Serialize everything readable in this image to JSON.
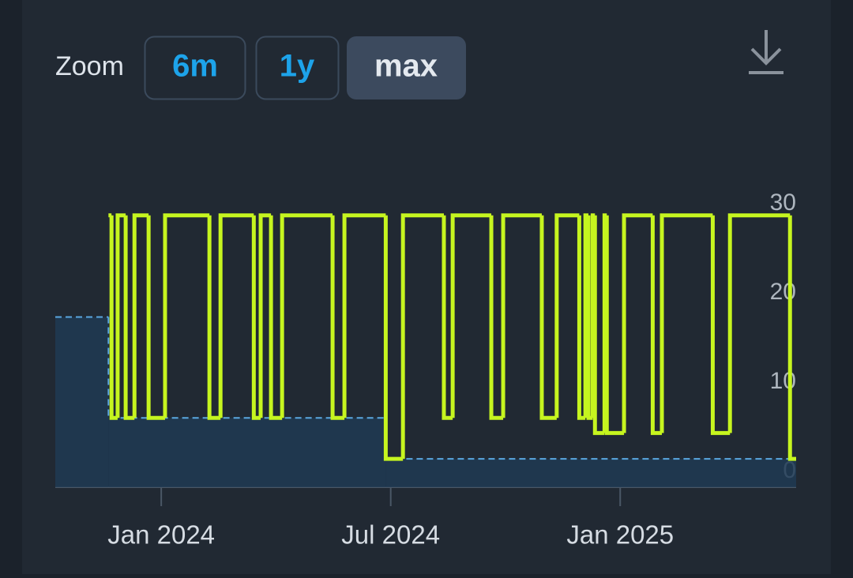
{
  "toolbar": {
    "label": "Zoom",
    "buttons": [
      "6m",
      "1y",
      "max"
    ]
  },
  "chart_data": {
    "type": "line",
    "step": true,
    "xlim": [
      -2.77,
      16.6
    ],
    "xticks": [
      {
        "value": 0,
        "label": "Jan 2024"
      },
      {
        "value": 6,
        "label": "Jul 2024"
      },
      {
        "value": 12,
        "label": "Jan 2025"
      }
    ],
    "ylim": [
      -1.77,
      30
    ],
    "yticks": [
      0,
      10,
      20,
      30
    ],
    "series": [
      {
        "color": "#5aa7e0",
        "dashed": true,
        "area": true,
        "x": [
          -2.77,
          -1.38,
          5.87
        ],
        "values": [
          17.3,
          6,
          1.4
        ]
      },
      {
        "color": "#c6f51f",
        "dashed": false,
        "area": false,
        "x": [
          -1.38,
          -1.3,
          -1.14,
          -0.93,
          -0.7,
          -0.33,
          0.1,
          1.26,
          1.55,
          2.42,
          2.6,
          2.87,
          3.16,
          4.48,
          4.79,
          5.87,
          6.32,
          7.39,
          7.62,
          8.63,
          8.94,
          9.95,
          10.34,
          10.93,
          11.09,
          11.17,
          11.28,
          11.34,
          11.59,
          11.65,
          12.1,
          12.85,
          13.09,
          14.42,
          14.87,
          16.44
        ],
        "values": [
          28.7,
          6,
          28.7,
          6,
          28.7,
          6,
          28.7,
          6,
          28.7,
          6,
          28.7,
          6,
          28.7,
          6,
          28.7,
          1.4,
          28.7,
          6,
          28.7,
          6,
          28.7,
          6,
          28.7,
          6,
          28.7,
          6,
          28.7,
          4.3,
          28.7,
          4.3,
          28.7,
          4.3,
          28.7,
          4.3,
          28.7,
          1.4
        ]
      }
    ]
  }
}
